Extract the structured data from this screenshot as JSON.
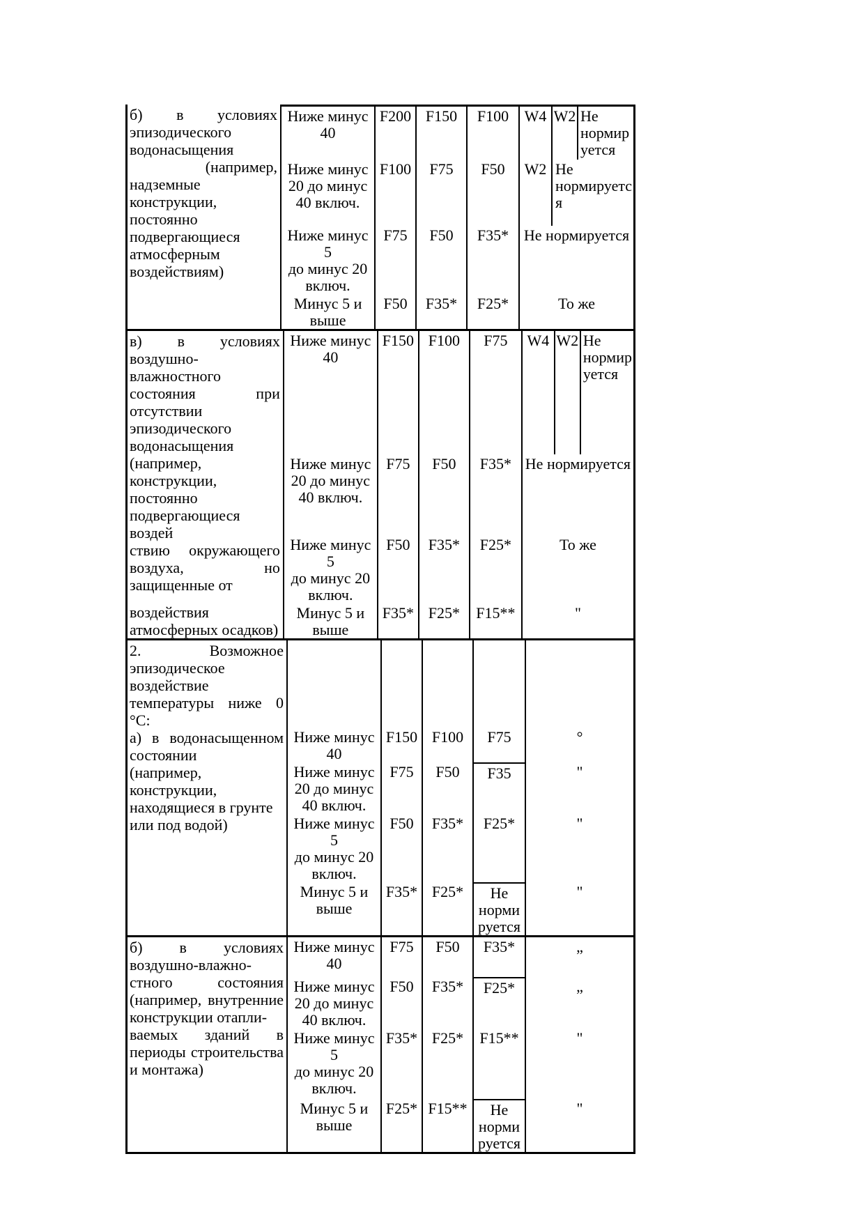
{
  "page": {
    "background_color": "#ffffff",
    "text_color": "#000000",
    "description": "Continuation page of a normative table: frost-resistance grades (F) and water-tightness grades (W) of concrete by service conditions and design winter temperature"
  },
  "table": {
    "blocks": [
      {
        "condition_lines": [
          {
            "text": "б) в условиях",
            "justify": true
          },
          {
            "text": "эпизодического",
            "justify": false
          },
          {
            "text": "водонасыщения",
            "justify": false
          },
          {
            "text": " (например, надземные",
            "justify": true
          },
          {
            "text": "конструкции,",
            "justify": false
          },
          {
            "text": "постоянно",
            "justify": false
          },
          {
            "text": "подвергающиеся",
            "justify": false
          },
          {
            "text": "атмосферным",
            "justify": false
          },
          {
            "text": "воздействиям)",
            "justify": false
          }
        ],
        "rows": [
          {
            "temp": [
              "Ниже минус",
              "40"
            ],
            "grades": [
              "F200",
              "F150",
              "F100"
            ],
            "last": {
              "type": "w4w2note",
              "w4": "W4",
              "w2": "W2",
              "note": "Не\nнормир\nуется"
            }
          },
          {
            "temp": [
              "Ниже минус",
              "20 до минус",
              "40 включ."
            ],
            "grades": [
              "F100",
              "F75",
              "F50"
            ],
            "last": {
              "type": "w2note",
              "w2": "W2",
              "note": "Не\nнормируетс\nя"
            }
          },
          {
            "temp": [
              "Ниже минус",
              "5",
              "до минус 20",
              "включ."
            ],
            "grades": [
              "F75",
              "F50",
              "F35*"
            ],
            "last": {
              "type": "merged",
              "text": "Не нормируется"
            }
          },
          {
            "temp": [
              "Минус 5 и",
              "выше"
            ],
            "grades": [
              "F50",
              "F35*",
              "F25*"
            ],
            "last": {
              "type": "merged",
              "text": "То же"
            }
          }
        ]
      },
      {
        "condition_lines": [
          {
            "text": "в) в условиях",
            "justify": true
          },
          {
            "text": "воздушно-",
            "justify": false
          },
          {
            "text": "влажностного",
            "justify": false
          },
          {
            "text": "состояния при",
            "justify": true
          },
          {
            "text": "отсутствии",
            "justify": false
          },
          {
            "text": "эпизодического",
            "justify": false
          },
          {
            "text": "водонасыщения",
            "justify": false
          },
          {
            "text": "(например,",
            "justify": false
          },
          {
            "text": "конструкции,",
            "justify": false
          },
          {
            "text": "постоянно",
            "justify": false
          },
          {
            "text": "подвергающиеся",
            "justify": false
          },
          {
            "text": "воздей",
            "justify": false
          },
          {
            "text": "ствию окружающего",
            "justify": true
          },
          {
            "text": "воздуха, но",
            "justify": true
          },
          {
            "text": "защищенные от",
            "justify": false
          },
          {
            "text": "",
            "justify": false
          },
          {
            "text": "воздействия",
            "justify": false
          },
          {
            "text": "атмосферных осадков)",
            "justify": false
          }
        ],
        "rows": [
          {
            "temp": [
              "Ниже минус",
              "40"
            ],
            "grades": [
              "F150",
              "F100",
              "F75"
            ],
            "last": {
              "type": "w4w2note",
              "w4": "W4",
              "w2": "W2",
              "note": "Не\nнормир\nуется"
            }
          },
          {
            "temp": [
              "Ниже минус",
              "20 до минус",
              "40 включ."
            ],
            "grades": [
              "F75",
              "F50",
              "F35*"
            ],
            "last": {
              "type": "merged",
              "text": "Не нормируется"
            }
          },
          {
            "temp": [
              "Ниже минус",
              "5",
              "до минус 20",
              "включ."
            ],
            "grades": [
              "F50",
              "F35*",
              "F25*"
            ],
            "last": {
              "type": "merged",
              "text": "То же"
            }
          },
          {
            "temp": [
              "Минус 5 и",
              "выше"
            ],
            "grades": [
              "F35*",
              "F25*",
              "F15**"
            ],
            "last": {
              "type": "merged",
              "text": "\""
            }
          }
        ]
      },
      {
        "condition_lines": [
          {
            "text": "2. Возможное",
            "justify": true
          },
          {
            "text": "эпизодическое",
            "justify": false
          },
          {
            "text": "воздействие",
            "justify": false
          },
          {
            "text": "температуры ниже 0",
            "justify": true
          },
          {
            "text": "°С:",
            "justify": false
          },
          {
            "text": "а) в водонасыщенном",
            "justify": true
          },
          {
            "text": "состоянии",
            "justify": false
          },
          {
            "text": "(например,",
            "justify": false
          },
          {
            "text": "конструкции,",
            "justify": false
          },
          {
            "text": "находящиеся в грунте",
            "justify": false
          },
          {
            "text": "или под водой)",
            "justify": false
          }
        ],
        "rows": [
          {
            "temp": [],
            "grades": [
              "",
              "",
              ""
            ],
            "last": {
              "type": "merged",
              "text": ""
            }
          },
          {
            "temp": [
              "Ниже минус",
              "40"
            ],
            "grades": [
              "F150",
              "F100",
              "F75"
            ],
            "last": {
              "type": "merged",
              "text": "°"
            }
          },
          {
            "temp": [
              "Ниже минус",
              "20 до минус",
              "40 включ."
            ],
            "grades": [
              "F75",
              "F50",
              "F35"
            ],
            "notch": true,
            "last": {
              "type": "merged",
              "text": "\""
            }
          },
          {
            "temp": [
              "Ниже минус",
              "5",
              "до минус 20",
              "включ."
            ],
            "grades": [
              "F50",
              "F35*",
              "F25*"
            ],
            "last": {
              "type": "merged",
              "text": "\""
            }
          },
          {
            "temp": [
              "Минус 5 и",
              "выше"
            ],
            "grades": [
              "F35*",
              "F25*",
              "Не\nнорми\nруется"
            ],
            "notch": true,
            "last": {
              "type": "merged",
              "text": "\""
            }
          }
        ]
      },
      {
        "condition_lines": [
          {
            "text": "б) в условиях",
            "justify": true
          },
          {
            "text": "воздушно-влажно-",
            "justify": false
          },
          {
            "text": "стного состояния",
            "justify": true
          },
          {
            "text": "(например, внутренние",
            "justify": true
          },
          {
            "text": "конструкции отапли-",
            "justify": false
          },
          {
            "text": "ваемых зданий в",
            "justify": true
          },
          {
            "text": "периоды строительства",
            "justify": true
          },
          {
            "text": "и монтажа)",
            "justify": false
          }
        ],
        "rows": [
          {
            "temp": [
              "Ниже минус",
              "40"
            ],
            "grades": [
              "F75",
              "F50",
              "F35*"
            ],
            "last": {
              "type": "merged",
              "text": "„"
            }
          },
          {
            "temp": [
              "Ниже минус",
              "20 до минус",
              "40 включ."
            ],
            "grades": [
              "F50",
              "F35*",
              "F25*"
            ],
            "notch": true,
            "last": {
              "type": "merged",
              "text": "„"
            }
          },
          {
            "temp": [
              "Ниже минус",
              "5",
              "до минус 20",
              "включ."
            ],
            "grades": [
              "F35*",
              "F25*",
              "F15**"
            ],
            "last": {
              "type": "merged",
              "text": "\""
            }
          },
          {
            "temp": [
              "Минус 5 и",
              "выше"
            ],
            "grades": [
              "F25*",
              "F15**",
              "Не\nнорми\nруется"
            ],
            "notch": true,
            "last": {
              "type": "merged",
              "text": "\""
            }
          }
        ]
      }
    ]
  }
}
